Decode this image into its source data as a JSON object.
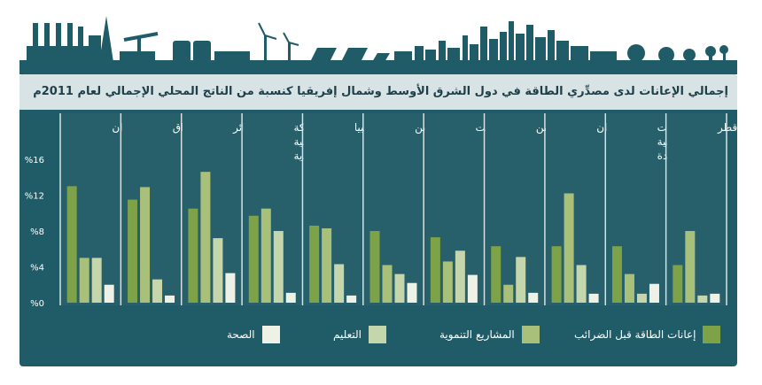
{
  "title": "إجمالي الإعانات لدى مصدِّري الطاقة في دول الشرق الأوسط وشمال إفريقيا كنسبة من الناتج المحلي الإجمالي لعام 2011م",
  "colors": {
    "energy": "#7ea248",
    "development": "#a9c07a",
    "education": "#c6d6ac",
    "health": "#eef2e6",
    "panel": "#1f5c68",
    "column_band": "#275f6b"
  },
  "chart_data": {
    "type": "bar",
    "title": "إجمالي الإعانات لدى مصدِّري الطاقة في دول الشرق الأوسط وشمال إفريقيا كنسبة من الناتج المحلي الإجمالي لعام 2011م",
    "categories": [
      [
        "إيران"
      ],
      [
        "العراق"
      ],
      [
        "الجزائر"
      ],
      [
        "المملكة",
        "العربية",
        "السعودية"
      ],
      [
        "ليبيا"
      ],
      [
        "البحرين"
      ],
      [
        "الكويت"
      ],
      [
        "اليمن"
      ],
      [
        "عُمان"
      ],
      [
        "الإمارات",
        "العربية",
        "المتحدة"
      ],
      [
        "قطر"
      ]
    ],
    "series": [
      {
        "name": "إعانات الطاقة قبل الضرائب",
        "color": "#7ea248",
        "values": [
          13.0,
          11.5,
          10.5,
          9.7,
          8.6,
          8.0,
          7.3,
          6.3,
          6.3,
          6.3,
          4.2
        ]
      },
      {
        "name": "المشاريع التنموية",
        "color": "#a9c07a",
        "values": [
          5.0,
          12.9,
          14.6,
          10.5,
          8.3,
          4.2,
          4.6,
          2.0,
          12.2,
          3.2,
          8.0
        ]
      },
      {
        "name": "التعليم",
        "color": "#c6d6ac",
        "values": [
          5.0,
          2.6,
          7.2,
          8.0,
          4.3,
          3.2,
          5.8,
          5.1,
          4.2,
          1.0,
          0.8
        ]
      },
      {
        "name": "الصحة",
        "color": "#eef2e6",
        "values": [
          2.0,
          0.8,
          3.3,
          1.1,
          0.8,
          2.2,
          3.1,
          1.1,
          1.0,
          2.1,
          1.0
        ]
      }
    ],
    "yticks": [
      "%0",
      "%4",
      "%8",
      "%12",
      "%16"
    ],
    "ylim": [
      0,
      16
    ],
    "legend_position": "bottom"
  }
}
